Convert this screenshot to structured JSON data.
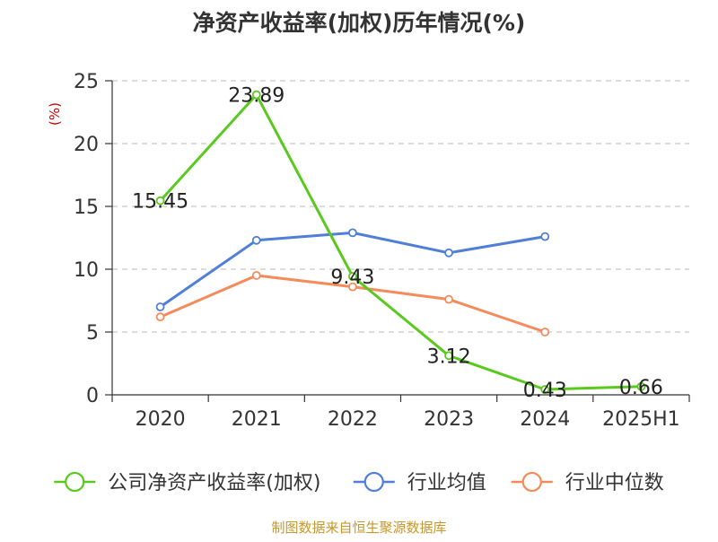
{
  "chart_data": {
    "type": "line",
    "title": "净资产收益率(加权)历年情况(%)",
    "ylabel": "(%)",
    "xlabel": "",
    "categories": [
      "2020",
      "2021",
      "2022",
      "2023",
      "2024",
      "2025H1"
    ],
    "ylim": [
      0,
      25
    ],
    "yticks": [
      0,
      5,
      10,
      15,
      20,
      25
    ],
    "grid": true,
    "legend_position": "bottom",
    "series": [
      {
        "name": "公司净资产收益率(加权)",
        "color": "#5ac91d",
        "values": [
          15.45,
          23.89,
          9.43,
          3.12,
          0.43,
          0.66
        ],
        "labels": [
          "15.45",
          "23.89",
          "9.43",
          "3.12",
          "0.43",
          "0.66"
        ]
      },
      {
        "name": "行业均值",
        "color": "#4f7fd9",
        "values": [
          7.0,
          12.3,
          12.9,
          11.3,
          12.6,
          null
        ]
      },
      {
        "name": "行业中位数",
        "color": "#f58a5b",
        "values": [
          6.2,
          9.5,
          8.6,
          7.6,
          5.0,
          null
        ]
      }
    ],
    "source": "制图数据来自恒生聚源数据库"
  }
}
